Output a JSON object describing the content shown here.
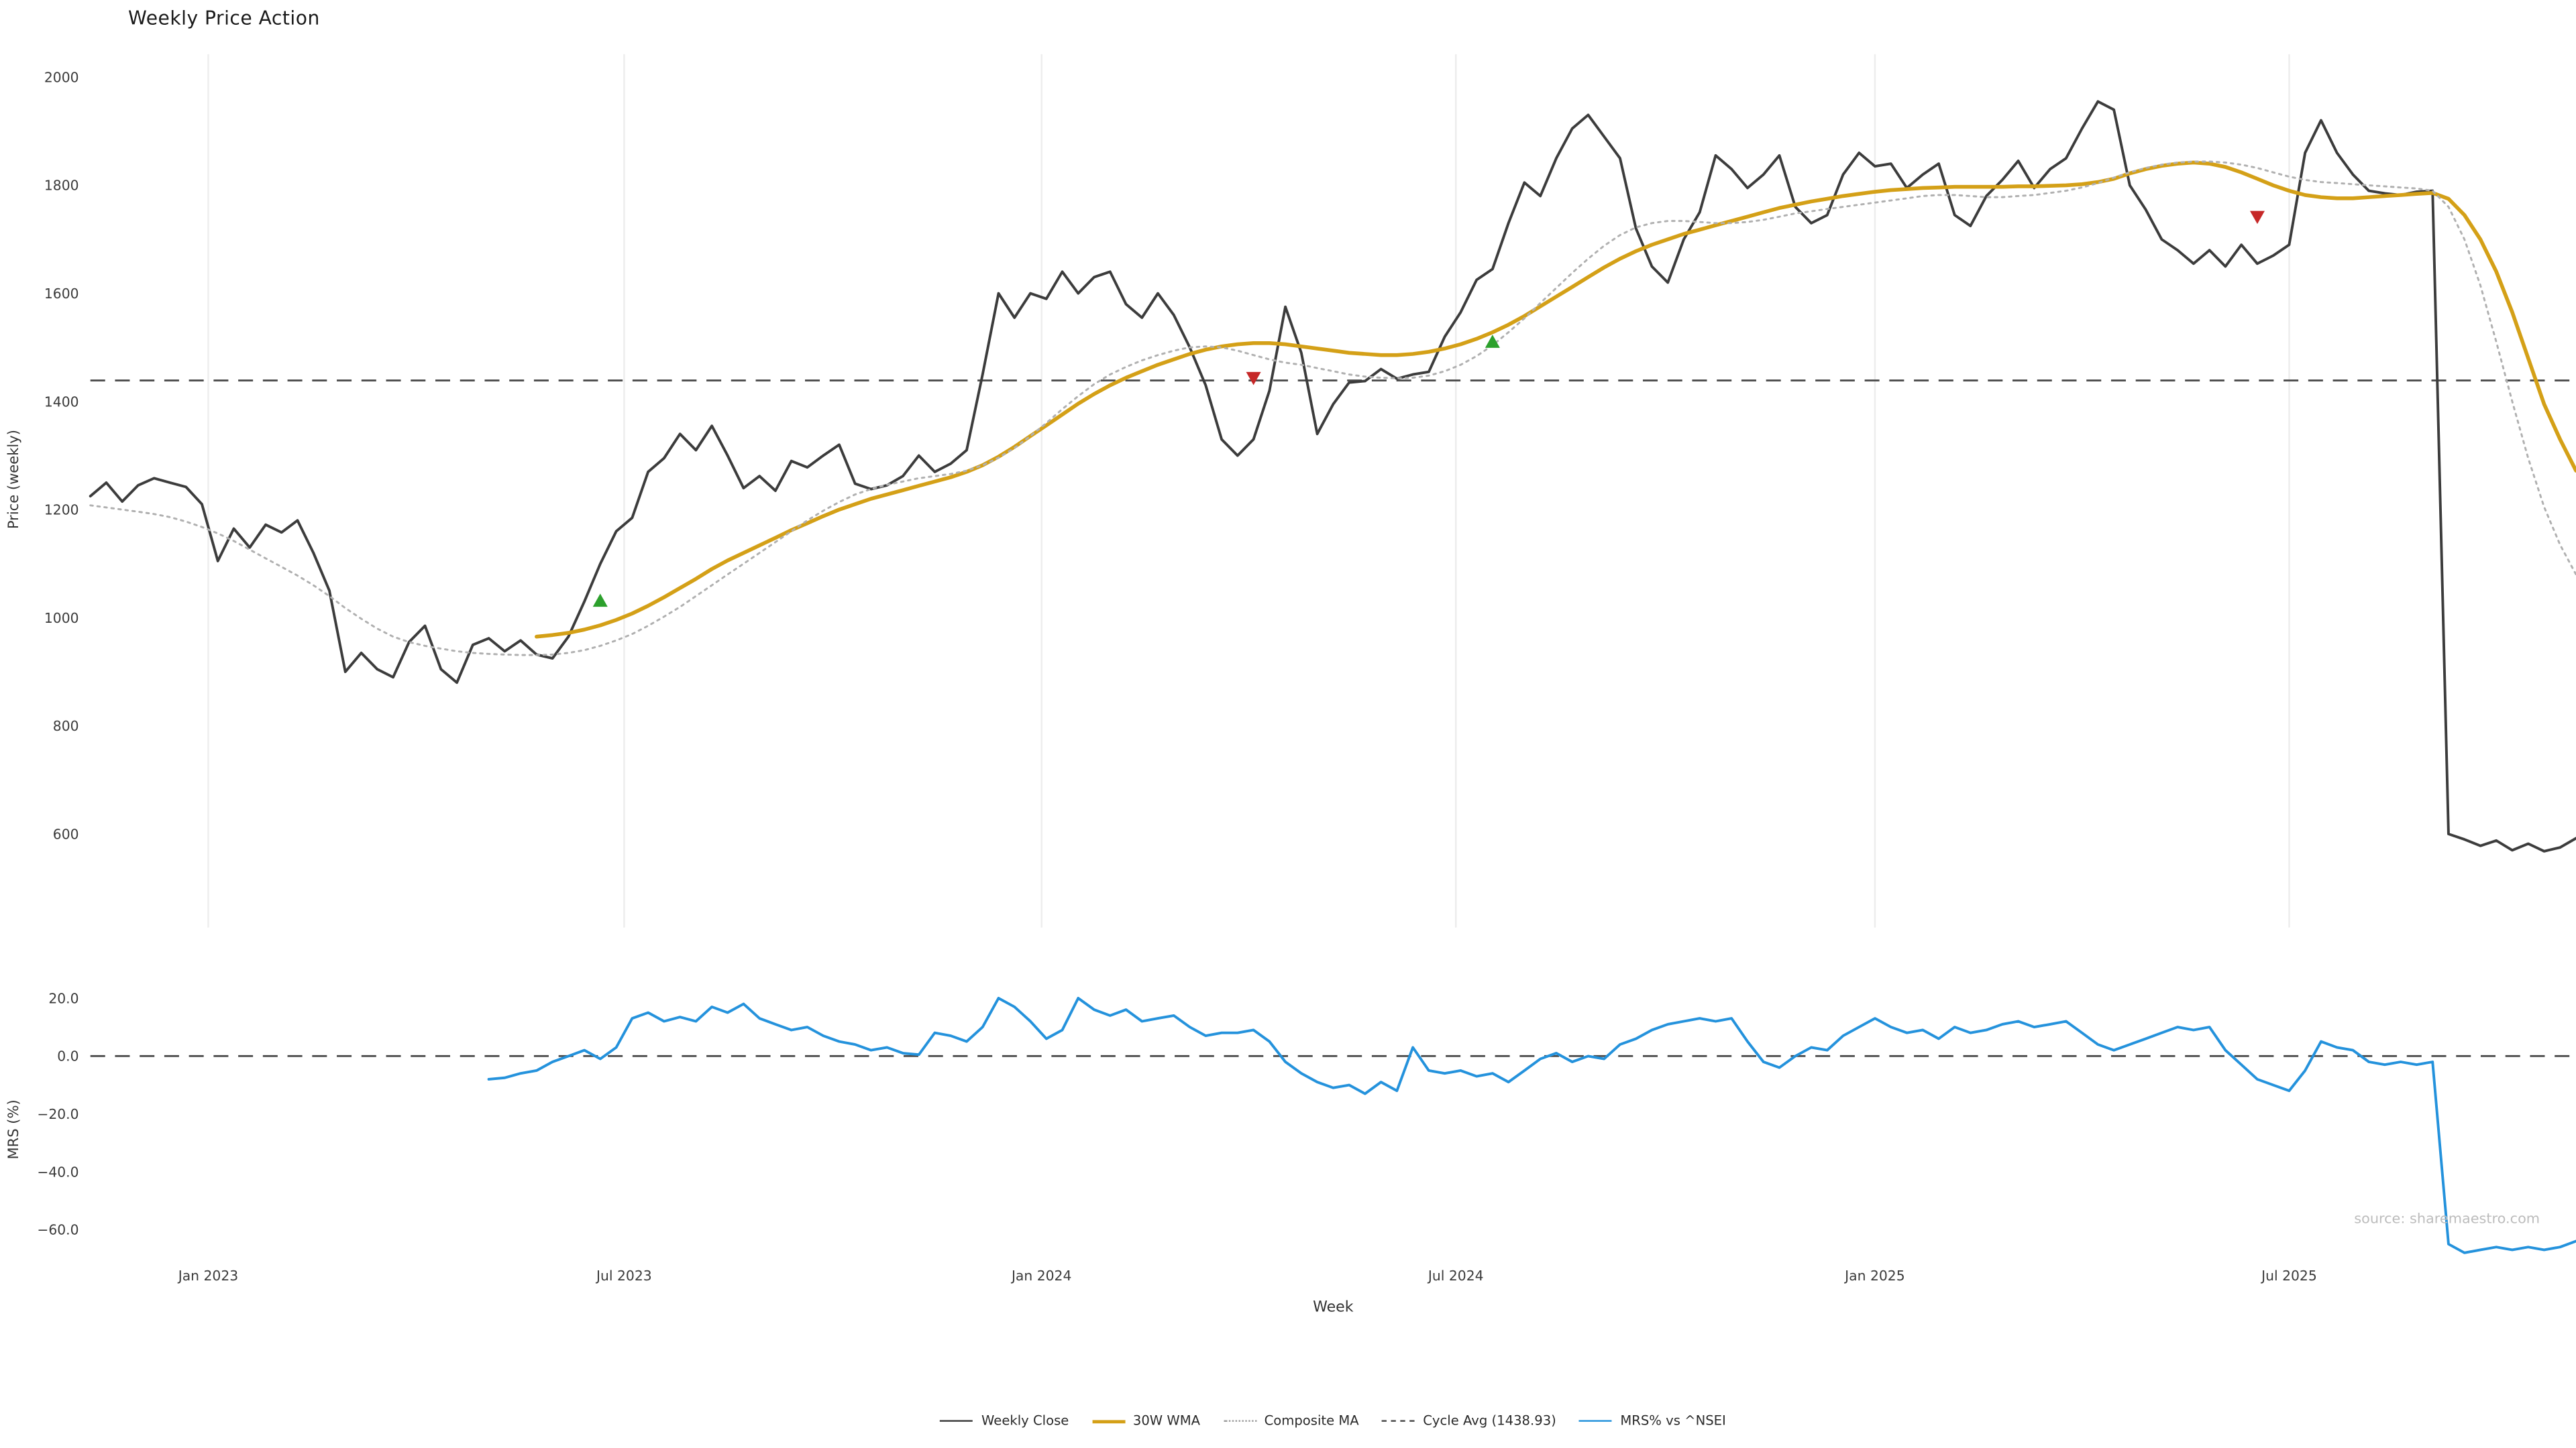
{
  "title": "Weekly Price Action",
  "source_note": "source: sharemaestro.com",
  "axes": {
    "xlabel": "Week",
    "price_ylabel": "Price (weekly)",
    "mrs_ylabel": "MRS (%)"
  },
  "colors": {
    "weekly_close": "#3c3c3c",
    "wma30": "#d4a017",
    "composite_ma": "#b0b0b0",
    "cycle_avg": "#4d4d4d",
    "mrs": "#2492dc",
    "buy_signal": "#2ca02c",
    "sell_signal": "#c62828",
    "grid": "#ededed",
    "source_text": "#bcbcbc"
  },
  "legend": [
    {
      "label": "Weekly Close",
      "style": "solid",
      "color": "#3c3c3c"
    },
    {
      "label": "30W WMA",
      "style": "solid",
      "color": "#d4a017"
    },
    {
      "label": "Composite MA",
      "style": "dotted",
      "color": "#9e9e9e"
    },
    {
      "label": "Cycle Avg (1438.93)",
      "style": "dashed",
      "color": "#4d4d4d"
    },
    {
      "label": "MRS% vs ^NSEI",
      "style": "solid",
      "color": "#2492dc"
    }
  ],
  "chart_data": {
    "type": "line",
    "title": "Weekly Price Action",
    "xlabel": "Week",
    "x_unit": "week_index_from_2022-11",
    "x_range": [
      0,
      156
    ],
    "x_ticks": [
      {
        "week": 7.4,
        "label": "Jan 2023"
      },
      {
        "week": 33.5,
        "label": "Jul 2023"
      },
      {
        "week": 59.7,
        "label": "Jan 2024"
      },
      {
        "week": 85.7,
        "label": "Jul 2024"
      },
      {
        "week": 112,
        "label": "Jan 2025"
      },
      {
        "week": 138,
        "label": "Jul 2025"
      }
    ],
    "panels": [
      {
        "name": "price",
        "ylabel": "Price (weekly)",
        "ylim": [
          430,
          2045
        ],
        "grid_x": true,
        "yticks": [
          {
            "value": 2000,
            "label": "2000"
          },
          {
            "value": 1800,
            "label": "1800"
          },
          {
            "value": 1600,
            "label": "1600"
          },
          {
            "value": 1400,
            "label": "1400"
          },
          {
            "value": 1200,
            "label": "1200"
          },
          {
            "value": 1000,
            "label": "1000"
          },
          {
            "value": 800,
            "label": "800"
          },
          {
            "value": 600,
            "label": "600"
          }
        ]
      },
      {
        "name": "mrs",
        "ylabel": "MRS (%)",
        "ylim": [
          -70,
          27
        ],
        "grid_x": false,
        "yticks": [
          {
            "value": 20,
            "label": "20.0"
          },
          {
            "value": 0,
            "label": "0.0"
          },
          {
            "value": -20,
            "label": "−20.0"
          },
          {
            "value": -40,
            "label": "−40.0"
          },
          {
            "value": -60,
            "label": "−60.0"
          }
        ]
      }
    ],
    "reference_lines": [
      {
        "label": "Cycle Avg (1438.93)",
        "panel": "price",
        "value": 1438.93,
        "style": "dashed",
        "color": "#4d4d4d"
      },
      {
        "label": "MRS zero line",
        "panel": "mrs",
        "value": 0,
        "style": "dashed",
        "color": "#4d4d4d"
      }
    ],
    "markers": {
      "buy": {
        "shape": "triangle-up",
        "color": "#2ca02c",
        "points": [
          {
            "week": 32,
            "price": 1031
          },
          {
            "week": 88,
            "price": 1510
          }
        ]
      },
      "sell": {
        "shape": "triangle-down",
        "color": "#c62828",
        "points": [
          {
            "week": 73,
            "price": 1444
          },
          {
            "week": 136,
            "price": 1742
          }
        ]
      }
    },
    "series": [
      {
        "name": "Weekly Close",
        "panel": "price",
        "style": "solid",
        "color": "#3c3c3c",
        "width": 1.6,
        "values": [
          1225,
          1250,
          1215,
          1245,
          1258,
          1250,
          1242,
          1210,
          1105,
          1165,
          1130,
          1172,
          1158,
          1180,
          1120,
          1050,
          900,
          935,
          905,
          890,
          955,
          985,
          905,
          880,
          950,
          962,
          938,
          958,
          932,
          925,
          965,
          1030,
          1100,
          1160,
          1185,
          1270,
          1295,
          1340,
          1310,
          1355,
          1300,
          1240,
          1262,
          1235,
          1290,
          1278,
          1300,
          1320,
          1248,
          1238,
          1245,
          1262,
          1300,
          1270,
          1285,
          1310,
          1450,
          1600,
          1555,
          1600,
          1590,
          1640,
          1600,
          1630,
          1640,
          1580,
          1555,
          1600,
          1560,
          1500,
          1430,
          1330,
          1300,
          1330,
          1420,
          1575,
          1490,
          1340,
          1395,
          1435,
          1438,
          1460,
          1442,
          1450,
          1455,
          1520,
          1565,
          1625,
          1645,
          1730,
          1805,
          1780,
          1850,
          1905,
          1930,
          1890,
          1850,
          1720,
          1650,
          1620,
          1700,
          1750,
          1855,
          1830,
          1795,
          1820,
          1855,
          1760,
          1730,
          1745,
          1820,
          1860,
          1835,
          1840,
          1795,
          1820,
          1840,
          1745,
          1725,
          1780,
          1810,
          1845,
          1795,
          1830,
          1850,
          1905,
          1955,
          1940,
          1800,
          1755,
          1700,
          1680,
          1655,
          1680,
          1650,
          1690,
          1655,
          1670,
          1690,
          1860,
          1920,
          1860,
          1820,
          1790,
          1785,
          1782,
          1788,
          1790,
          600,
          590,
          578,
          588,
          570,
          582,
          568,
          575,
          592
        ]
      },
      {
        "name": "30W WMA",
        "panel": "price",
        "style": "solid",
        "color": "#d4a017",
        "width": 2.3,
        "values": [
          null,
          null,
          null,
          null,
          null,
          null,
          null,
          null,
          null,
          null,
          null,
          null,
          null,
          null,
          null,
          null,
          null,
          null,
          null,
          null,
          null,
          null,
          null,
          null,
          null,
          null,
          null,
          null,
          965,
          968,
          972,
          978,
          986,
          996,
          1008,
          1022,
          1038,
          1055,
          1072,
          1090,
          1106,
          1120,
          1134,
          1148,
          1162,
          1175,
          1188,
          1200,
          1210,
          1220,
          1228,
          1236,
          1244,
          1252,
          1260,
          1270,
          1282,
          1298,
          1316,
          1336,
          1356,
          1376,
          1396,
          1414,
          1430,
          1444,
          1456,
          1468,
          1478,
          1488,
          1496,
          1502,
          1506,
          1508,
          1508,
          1506,
          1502,
          1498,
          1494,
          1490,
          1488,
          1486,
          1486,
          1488,
          1492,
          1498,
          1506,
          1516,
          1528,
          1542,
          1558,
          1576,
          1594,
          1612,
          1630,
          1648,
          1664,
          1678,
          1690,
          1700,
          1710,
          1718,
          1726,
          1734,
          1742,
          1750,
          1758,
          1764,
          1770,
          1775,
          1780,
          1784,
          1788,
          1791,
          1793,
          1795,
          1796,
          1797,
          1797,
          1797,
          1797,
          1798,
          1798,
          1799,
          1800,
          1802,
          1806,
          1812,
          1822,
          1830,
          1836,
          1840,
          1842,
          1840,
          1834,
          1824,
          1812,
          1800,
          1790,
          1782,
          1778,
          1776,
          1776,
          1778,
          1780,
          1782,
          1784,
          1786,
          1775,
          1745,
          1700,
          1640,
          1565,
          1480,
          1395,
          1330,
          1272
        ]
      },
      {
        "name": "Composite MA",
        "panel": "price",
        "style": "dotted",
        "color": "#b0b0b0",
        "width": 1.2,
        "values": [
          1208,
          1204,
          1200,
          1196,
          1192,
          1186,
          1178,
          1168,
          1156,
          1142,
          1126,
          1110,
          1094,
          1078,
          1060,
          1040,
          1018,
          998,
          980,
          965,
          955,
          948,
          943,
          938,
          935,
          933,
          932,
          931,
          931,
          932,
          935,
          940,
          948,
          958,
          970,
          985,
          1002,
          1020,
          1040,
          1060,
          1080,
          1100,
          1120,
          1140,
          1160,
          1180,
          1198,
          1214,
          1228,
          1238,
          1246,
          1252,
          1258,
          1262,
          1266,
          1272,
          1282,
          1296,
          1314,
          1336,
          1360,
          1386,
          1410,
          1432,
          1450,
          1464,
          1476,
          1486,
          1494,
          1500,
          1502,
          1500,
          1494,
          1486,
          1478,
          1472,
          1468,
          1462,
          1456,
          1450,
          1446,
          1444,
          1443,
          1444,
          1448,
          1456,
          1468,
          1484,
          1504,
          1528,
          1554,
          1582,
          1610,
          1638,
          1664,
          1688,
          1708,
          1722,
          1730,
          1734,
          1734,
          1732,
          1730,
          1730,
          1732,
          1736,
          1742,
          1748,
          1752,
          1756,
          1760,
          1764,
          1768,
          1772,
          1776,
          1780,
          1782,
          1782,
          1780,
          1778,
          1778,
          1780,
          1782,
          1786,
          1790,
          1796,
          1804,
          1814,
          1824,
          1832,
          1838,
          1842,
          1844,
          1844,
          1842,
          1838,
          1832,
          1824,
          1816,
          1810,
          1806,
          1804,
          1802,
          1800,
          1798,
          1796,
          1794,
          1790,
          1760,
          1700,
          1615,
          1510,
          1400,
          1295,
          1205,
          1135,
          1080
        ]
      },
      {
        "name": "MRS% vs ^NSEI",
        "panel": "mrs",
        "style": "solid",
        "color": "#2492dc",
        "width": 1.6,
        "values": [
          null,
          null,
          null,
          null,
          null,
          null,
          null,
          null,
          null,
          null,
          null,
          null,
          null,
          null,
          null,
          null,
          null,
          null,
          null,
          null,
          null,
          null,
          null,
          null,
          null,
          -8,
          -7.5,
          -6,
          -5,
          -2,
          0,
          2,
          -1,
          3,
          13,
          15,
          12,
          13.5,
          12,
          17,
          15,
          18,
          13,
          11,
          9,
          10,
          7,
          5,
          4,
          2,
          3,
          1,
          0.5,
          8,
          7,
          5,
          10,
          20,
          17,
          12,
          6,
          9,
          20,
          16,
          14,
          16,
          12,
          13,
          14,
          10,
          7,
          8,
          8,
          9,
          5,
          -2,
          -6,
          -9,
          -11,
          -10,
          -13,
          -9,
          -12,
          3,
          -5,
          -6,
          -5,
          -7,
          -6,
          -9,
          -5,
          -1,
          1,
          -2,
          0,
          -1,
          4,
          6,
          9,
          11,
          12,
          13,
          12,
          13,
          5,
          -2,
          -4,
          0,
          3,
          2,
          7,
          10,
          13,
          10,
          8,
          9,
          6,
          10,
          8,
          9,
          11,
          12,
          10,
          11,
          12,
          8,
          4,
          2,
          4,
          6,
          8,
          10,
          9,
          10,
          2,
          -3,
          -8,
          -10,
          -12,
          -5,
          5,
          3,
          2,
          -2,
          -3,
          -2,
          -3,
          -2,
          -65,
          -68,
          -67,
          -66,
          -67,
          -66,
          -67,
          -66,
          -64
        ]
      }
    ]
  }
}
